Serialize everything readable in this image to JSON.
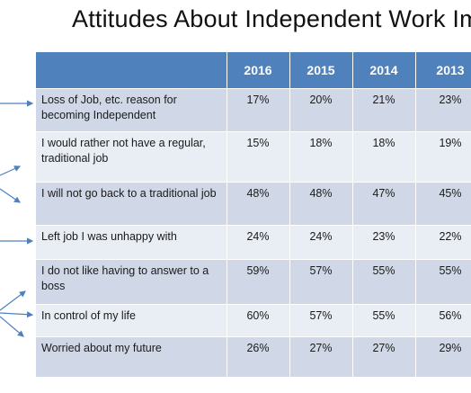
{
  "title": "Attitudes About Independent Work Imp",
  "chart_data": {
    "type": "table",
    "title": "Attitudes About Independent Work Imp",
    "columns": [
      "",
      "2016",
      "2015",
      "2014",
      "2013"
    ],
    "rows": [
      {
        "label": "Loss of Job, etc. reason for becoming Independent",
        "values": [
          "17%",
          "20%",
          "21%",
          "23%"
        ]
      },
      {
        "label": "I would rather not have a regular, traditional job",
        "values": [
          "15%",
          "18%",
          "18%",
          "19%"
        ]
      },
      {
        "label": "I will not go back to a traditional job",
        "values": [
          "48%",
          "48%",
          "47%",
          "45%"
        ]
      },
      {
        "label": "Left job I was unhappy with",
        "values": [
          "24%",
          "24%",
          "23%",
          "22%"
        ]
      },
      {
        "label": "I do not like having to answer to a boss",
        "values": [
          "59%",
          "57%",
          "55%",
          "55%"
        ]
      },
      {
        "label": "In control of my life",
        "values": [
          "60%",
          "57%",
          "55%",
          "56%"
        ]
      },
      {
        "label": "Worried about my future",
        "values": [
          "26%",
          "27%",
          "27%",
          "29%"
        ]
      }
    ]
  },
  "colors": {
    "header": "#4f81bd",
    "row_odd": "#d0d8e8",
    "row_even": "#e9edf4",
    "arrow": "#4f81bd"
  }
}
